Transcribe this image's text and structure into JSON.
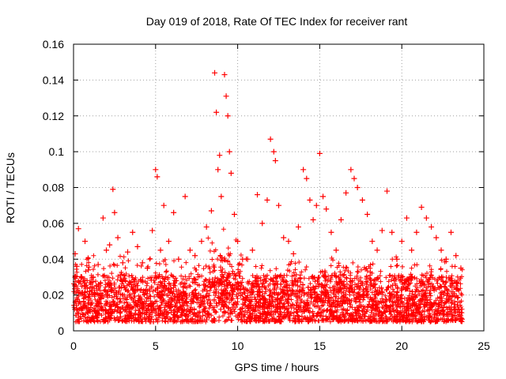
{
  "chart_data": {
    "type": "scatter",
    "title": "Day 019 of 2018, Rate Of TEC Index for receiver rant",
    "xlabel": "GPS time / hours",
    "ylabel": "ROTI / TECUs",
    "xlim": [
      0,
      25
    ],
    "ylim": [
      0,
      0.16
    ],
    "xticks": [
      0,
      5,
      10,
      15,
      20,
      25
    ],
    "yticks": [
      0,
      0.02,
      0.04,
      0.06,
      0.08,
      0.1,
      0.12,
      0.14,
      0.16
    ],
    "xtick_labels": [
      "0",
      "5",
      "10",
      "15",
      "20",
      "25"
    ],
    "ytick_labels": [
      "0",
      "0.02",
      "0.04",
      "0.06",
      "0.08",
      "0.1",
      "0.12",
      "0.14",
      "0.16"
    ],
    "grid": true,
    "marker": "+",
    "color": "#ff0000",
    "series": [
      {
        "name": "ROTI",
        "x": [
          0.1,
          0.2,
          0.3,
          0.5,
          0.7,
          0.9,
          1.2,
          1.5,
          1.8,
          2.0,
          2.2,
          2.4,
          2.5,
          2.7,
          3.0,
          3.3,
          3.6,
          3.9,
          4.2,
          4.5,
          4.8,
          5.0,
          5.1,
          5.3,
          5.5,
          5.8,
          6.1,
          6.4,
          6.8,
          7.1,
          7.4,
          7.8,
          8.1,
          8.4,
          8.6,
          8.7,
          8.8,
          8.9,
          9.0,
          9.2,
          9.3,
          9.4,
          9.5,
          9.6,
          9.8,
          10.0,
          10.3,
          10.6,
          10.9,
          11.2,
          11.5,
          11.8,
          12.0,
          12.2,
          12.3,
          12.5,
          12.8,
          13.1,
          13.4,
          13.7,
          14.0,
          14.2,
          14.4,
          14.6,
          14.8,
          15.0,
          15.2,
          15.4,
          15.7,
          16.0,
          16.3,
          16.6,
          16.9,
          17.1,
          17.3,
          17.6,
          17.9,
          18.2,
          18.5,
          18.8,
          19.1,
          19.4,
          19.7,
          20.0,
          20.3,
          20.6,
          20.9,
          21.2,
          21.5,
          21.8,
          22.1,
          22.4,
          22.7,
          23.0,
          23.3,
          23.6
        ],
        "y": [
          0.043,
          0.036,
          0.057,
          0.03,
          0.05,
          0.034,
          0.03,
          0.037,
          0.063,
          0.045,
          0.048,
          0.079,
          0.066,
          0.052,
          0.038,
          0.044,
          0.055,
          0.047,
          0.038,
          0.035,
          0.056,
          0.09,
          0.086,
          0.045,
          0.07,
          0.05,
          0.066,
          0.04,
          0.075,
          0.045,
          0.042,
          0.05,
          0.058,
          0.067,
          0.144,
          0.122,
          0.09,
          0.098,
          0.075,
          0.143,
          0.131,
          0.12,
          0.1,
          0.088,
          0.065,
          0.05,
          0.04,
          0.04,
          0.045,
          0.076,
          0.06,
          0.073,
          0.107,
          0.1,
          0.095,
          0.07,
          0.052,
          0.05,
          0.043,
          0.058,
          0.09,
          0.085,
          0.073,
          0.062,
          0.07,
          0.099,
          0.075,
          0.068,
          0.055,
          0.045,
          0.062,
          0.077,
          0.09,
          0.085,
          0.08,
          0.073,
          0.065,
          0.05,
          0.045,
          0.056,
          0.078,
          0.055,
          0.04,
          0.05,
          0.063,
          0.045,
          0.055,
          0.069,
          0.063,
          0.058,
          0.052,
          0.045,
          0.04,
          0.055,
          0.042,
          0.035
        ]
      }
    ]
  }
}
